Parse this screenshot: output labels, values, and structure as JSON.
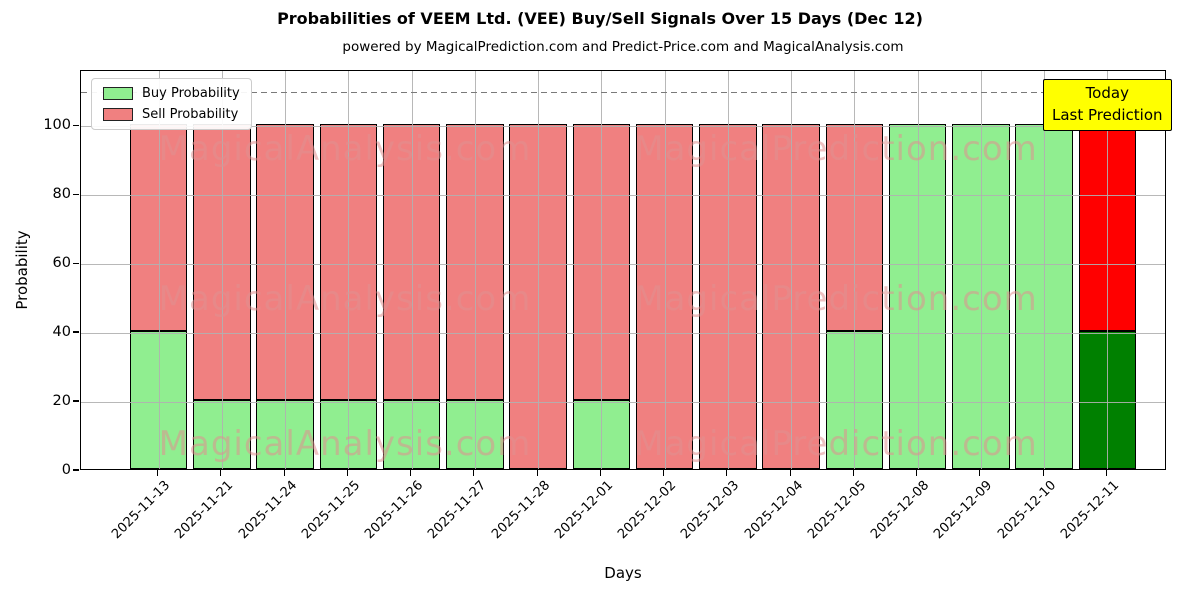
{
  "title": "Probabilities of VEEM Ltd. (VEE) Buy/Sell Signals Over 15 Days (Dec 12)",
  "subtitle": "powered by MagicalPrediction.com and Predict-Price.com and MagicalAnalysis.com",
  "legend": [
    {
      "label": "Buy Probability",
      "color": "#90ee90"
    },
    {
      "label": "Sell Probability",
      "color": "#f08080"
    }
  ],
  "annotation": {
    "line1": "Today",
    "line2": "Last Prediction",
    "bg_color": "#ffff00"
  },
  "watermarks": {
    "left": "MagicalAnalysis.com",
    "right": "MagicalPrediction.com"
  },
  "chart_data": {
    "type": "bar",
    "stacked": true,
    "title": "Probabilities of VEEM Ltd. (VEE) Buy/Sell Signals Over 15 Days (Dec 12)",
    "xlabel": "Days",
    "ylabel": "Probability",
    "categories": [
      "2025-11-13",
      "2025-11-21",
      "2025-11-24",
      "2025-11-25",
      "2025-11-26",
      "2025-11-27",
      "2025-11-28",
      "2025-12-01",
      "2025-12-02",
      "2025-12-03",
      "2025-12-04",
      "2025-12-05",
      "2025-12-08",
      "2025-12-09",
      "2025-12-10",
      "2025-12-11"
    ],
    "series": [
      {
        "name": "Buy Probability",
        "color": "#90ee90",
        "values": [
          40,
          20,
          20,
          20,
          20,
          20,
          0,
          20,
          0,
          0,
          0,
          40,
          100,
          100,
          100,
          40
        ]
      },
      {
        "name": "Sell Probability",
        "color": "#f08080",
        "values": [
          60,
          80,
          80,
          80,
          80,
          80,
          100,
          80,
          100,
          100,
          100,
          60,
          0,
          0,
          0,
          60
        ]
      }
    ],
    "yticks": [
      0,
      20,
      40,
      60,
      80,
      100
    ],
    "ylim": [
      0,
      116
    ],
    "dashed_line_y": 110,
    "grid": true,
    "legend_position": "upper left",
    "today": {
      "index": 15,
      "buy_color": "#008000",
      "sell_color": "#ff0000",
      "edge_color": "#ffa500"
    }
  }
}
